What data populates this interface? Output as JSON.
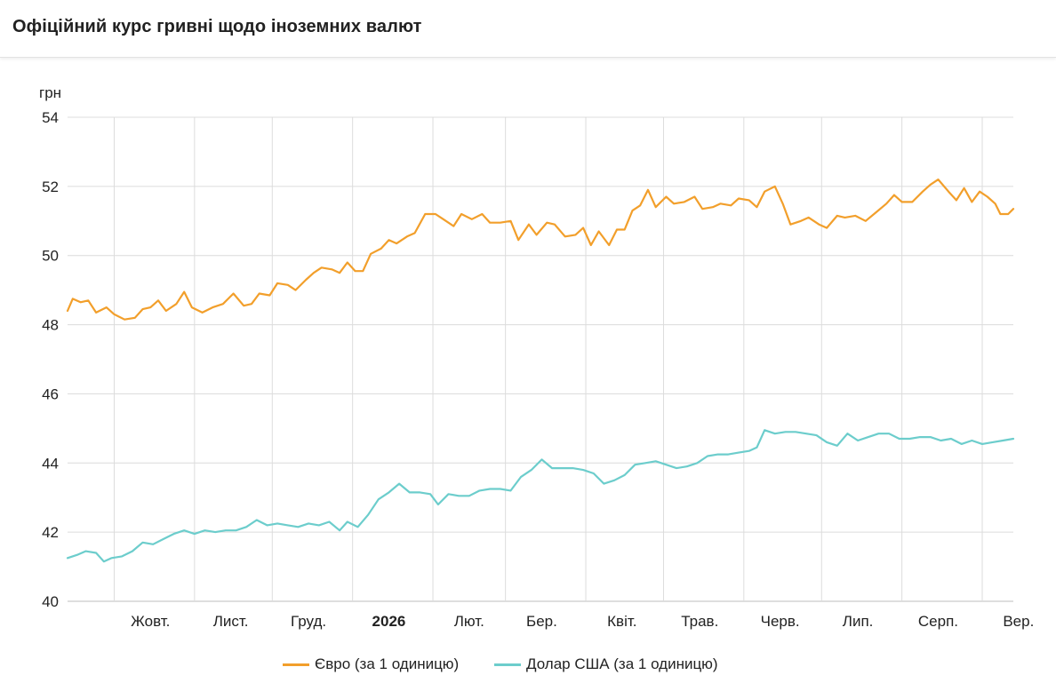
{
  "header": {
    "title": "Офіційний курс гривні щодо іноземних валют"
  },
  "legend": {
    "items": [
      {
        "label": "Євро (за 1 одиницю)",
        "color": "#f29f2b"
      },
      {
        "label": "Долар США (за 1 одиницю)",
        "color": "#6ccdcc"
      }
    ]
  },
  "chart_data": {
    "type": "line",
    "ylabel": "грн",
    "ylim": [
      40,
      54
    ],
    "yticks": [
      40,
      42,
      44,
      46,
      48,
      50,
      52,
      54
    ],
    "xlim": [
      "2025-09-13",
      "2026-09-13"
    ],
    "grid": true,
    "legend_position": "bottom",
    "x_ticks": [
      {
        "label": "Жовт.",
        "date": "2025-10-15",
        "bold": false
      },
      {
        "label": "Лист.",
        "date": "2025-11-15",
        "bold": false
      },
      {
        "label": "Груд.",
        "date": "2025-12-15",
        "bold": false
      },
      {
        "label": "2026",
        "date": "2026-01-15",
        "bold": true
      },
      {
        "label": "Лют.",
        "date": "2026-02-15",
        "bold": false
      },
      {
        "label": "Бер.",
        "date": "2026-03-15",
        "bold": false
      },
      {
        "label": "Квіт.",
        "date": "2026-04-15",
        "bold": false
      },
      {
        "label": "Трав.",
        "date": "2026-05-15",
        "bold": false
      },
      {
        "label": "Черв.",
        "date": "2026-06-15",
        "bold": false
      },
      {
        "label": "Лип.",
        "date": "2026-07-15",
        "bold": false
      },
      {
        "label": "Серп.",
        "date": "2026-08-15",
        "bold": false
      },
      {
        "label": "Вер.",
        "date": "2026-09-15",
        "bold": false
      }
    ],
    "v_gridlines": [
      "2025-10-01",
      "2025-11-01",
      "2025-12-01",
      "2026-01-01",
      "2026-02-01",
      "2026-03-01",
      "2026-04-01",
      "2026-05-01",
      "2026-06-01",
      "2026-07-01",
      "2026-08-01",
      "2026-09-01"
    ],
    "series": [
      {
        "name": "Євро (за 1 одиницю)",
        "color": "#f29f2b",
        "points": [
          [
            "2025-09-13",
            48.4
          ],
          [
            "2025-09-15",
            48.75
          ],
          [
            "2025-09-18",
            48.65
          ],
          [
            "2025-09-21",
            48.7
          ],
          [
            "2025-09-24",
            48.35
          ],
          [
            "2025-09-28",
            48.5
          ],
          [
            "2025-10-01",
            48.3
          ],
          [
            "2025-10-05",
            48.15
          ],
          [
            "2025-10-09",
            48.2
          ],
          [
            "2025-10-12",
            48.45
          ],
          [
            "2025-10-15",
            48.5
          ],
          [
            "2025-10-18",
            48.7
          ],
          [
            "2025-10-21",
            48.4
          ],
          [
            "2025-10-25",
            48.6
          ],
          [
            "2025-10-28",
            48.95
          ],
          [
            "2025-10-31",
            48.5
          ],
          [
            "2025-11-04",
            48.35
          ],
          [
            "2025-11-08",
            48.5
          ],
          [
            "2025-11-12",
            48.6
          ],
          [
            "2025-11-16",
            48.9
          ],
          [
            "2025-11-20",
            48.55
          ],
          [
            "2025-11-23",
            48.6
          ],
          [
            "2025-11-26",
            48.9
          ],
          [
            "2025-11-30",
            48.85
          ],
          [
            "2025-12-03",
            49.2
          ],
          [
            "2025-12-07",
            49.15
          ],
          [
            "2025-12-10",
            49.0
          ],
          [
            "2025-12-14",
            49.3
          ],
          [
            "2025-12-17",
            49.5
          ],
          [
            "2025-12-20",
            49.65
          ],
          [
            "2025-12-24",
            49.6
          ],
          [
            "2025-12-27",
            49.5
          ],
          [
            "2025-12-30",
            49.8
          ],
          [
            "2026-01-02",
            49.55
          ],
          [
            "2026-01-05",
            49.55
          ],
          [
            "2026-01-08",
            50.05
          ],
          [
            "2026-01-12",
            50.2
          ],
          [
            "2026-01-15",
            50.45
          ],
          [
            "2026-01-18",
            50.35
          ],
          [
            "2026-01-22",
            50.55
          ],
          [
            "2026-01-25",
            50.65
          ],
          [
            "2026-01-29",
            51.2
          ],
          [
            "2026-02-02",
            51.2
          ],
          [
            "2026-02-05",
            51.05
          ],
          [
            "2026-02-09",
            50.85
          ],
          [
            "2026-02-12",
            51.2
          ],
          [
            "2026-02-16",
            51.05
          ],
          [
            "2026-02-20",
            51.2
          ],
          [
            "2026-02-23",
            50.95
          ],
          [
            "2026-02-27",
            50.95
          ],
          [
            "2026-03-03",
            51.0
          ],
          [
            "2026-03-06",
            50.45
          ],
          [
            "2026-03-10",
            50.9
          ],
          [
            "2026-03-13",
            50.6
          ],
          [
            "2026-03-17",
            50.95
          ],
          [
            "2026-03-20",
            50.9
          ],
          [
            "2026-03-24",
            50.55
          ],
          [
            "2026-03-28",
            50.6
          ],
          [
            "2026-03-31",
            50.8
          ],
          [
            "2026-04-03",
            50.3
          ],
          [
            "2026-04-06",
            50.7
          ],
          [
            "2026-04-10",
            50.3
          ],
          [
            "2026-04-13",
            50.75
          ],
          [
            "2026-04-16",
            50.75
          ],
          [
            "2026-04-19",
            51.3
          ],
          [
            "2026-04-22",
            51.45
          ],
          [
            "2026-04-25",
            51.9
          ],
          [
            "2026-04-28",
            51.4
          ],
          [
            "2026-05-02",
            51.7
          ],
          [
            "2026-05-05",
            51.5
          ],
          [
            "2026-05-09",
            51.55
          ],
          [
            "2026-05-13",
            51.7
          ],
          [
            "2026-05-16",
            51.35
          ],
          [
            "2026-05-20",
            51.4
          ],
          [
            "2026-05-23",
            51.5
          ],
          [
            "2026-05-27",
            51.45
          ],
          [
            "2026-05-30",
            51.65
          ],
          [
            "2026-06-03",
            51.6
          ],
          [
            "2026-06-06",
            51.4
          ],
          [
            "2026-06-09",
            51.85
          ],
          [
            "2026-06-13",
            52.0
          ],
          [
            "2026-06-16",
            51.5
          ],
          [
            "2026-06-19",
            50.9
          ],
          [
            "2026-06-23",
            51.0
          ],
          [
            "2026-06-26",
            51.1
          ],
          [
            "2026-06-30",
            50.9
          ],
          [
            "2026-07-03",
            50.8
          ],
          [
            "2026-07-07",
            51.15
          ],
          [
            "2026-07-10",
            51.1
          ],
          [
            "2026-07-14",
            51.15
          ],
          [
            "2026-07-18",
            51.0
          ],
          [
            "2026-07-22",
            51.25
          ],
          [
            "2026-07-26",
            51.5
          ],
          [
            "2026-07-29",
            51.75
          ],
          [
            "2026-08-01",
            51.55
          ],
          [
            "2026-08-05",
            51.55
          ],
          [
            "2026-08-09",
            51.85
          ],
          [
            "2026-08-12",
            52.05
          ],
          [
            "2026-08-15",
            52.2
          ],
          [
            "2026-08-19",
            51.85
          ],
          [
            "2026-08-22",
            51.6
          ],
          [
            "2026-08-25",
            51.95
          ],
          [
            "2026-08-28",
            51.55
          ],
          [
            "2026-08-31",
            51.85
          ],
          [
            "2026-09-03",
            51.7
          ],
          [
            "2026-09-06",
            51.5
          ],
          [
            "2026-09-08",
            51.2
          ],
          [
            "2026-09-11",
            51.2
          ],
          [
            "2026-09-13",
            51.35
          ]
        ]
      },
      {
        "name": "Долар США (за 1 одиницю)",
        "color": "#6ccdcc",
        "points": [
          [
            "2025-09-13",
            41.25
          ],
          [
            "2025-09-17",
            41.35
          ],
          [
            "2025-09-20",
            41.45
          ],
          [
            "2025-09-24",
            41.4
          ],
          [
            "2025-09-27",
            41.15
          ],
          [
            "2025-09-30",
            41.25
          ],
          [
            "2025-10-04",
            41.3
          ],
          [
            "2025-10-08",
            41.45
          ],
          [
            "2025-10-12",
            41.7
          ],
          [
            "2025-10-16",
            41.65
          ],
          [
            "2025-10-20",
            41.8
          ],
          [
            "2025-10-24",
            41.95
          ],
          [
            "2025-10-28",
            42.05
          ],
          [
            "2025-11-01",
            41.95
          ],
          [
            "2025-11-05",
            42.05
          ],
          [
            "2025-11-09",
            42.0
          ],
          [
            "2025-11-13",
            42.05
          ],
          [
            "2025-11-17",
            42.05
          ],
          [
            "2025-11-21",
            42.15
          ],
          [
            "2025-11-25",
            42.35
          ],
          [
            "2025-11-29",
            42.2
          ],
          [
            "2025-12-03",
            42.25
          ],
          [
            "2025-12-07",
            42.2
          ],
          [
            "2025-12-11",
            42.15
          ],
          [
            "2025-12-15",
            42.25
          ],
          [
            "2025-12-19",
            42.2
          ],
          [
            "2025-12-23",
            42.3
          ],
          [
            "2025-12-27",
            42.05
          ],
          [
            "2025-12-30",
            42.3
          ],
          [
            "2026-01-03",
            42.15
          ],
          [
            "2026-01-07",
            42.5
          ],
          [
            "2026-01-11",
            42.95
          ],
          [
            "2026-01-15",
            43.15
          ],
          [
            "2026-01-19",
            43.4
          ],
          [
            "2026-01-23",
            43.15
          ],
          [
            "2026-01-27",
            43.15
          ],
          [
            "2026-01-31",
            43.1
          ],
          [
            "2026-02-03",
            42.8
          ],
          [
            "2026-02-07",
            43.1
          ],
          [
            "2026-02-11",
            43.05
          ],
          [
            "2026-02-15",
            43.05
          ],
          [
            "2026-02-19",
            43.2
          ],
          [
            "2026-02-23",
            43.25
          ],
          [
            "2026-02-27",
            43.25
          ],
          [
            "2026-03-03",
            43.2
          ],
          [
            "2026-03-07",
            43.6
          ],
          [
            "2026-03-11",
            43.8
          ],
          [
            "2026-03-15",
            44.1
          ],
          [
            "2026-03-19",
            43.85
          ],
          [
            "2026-03-23",
            43.85
          ],
          [
            "2026-03-27",
            43.85
          ],
          [
            "2026-03-31",
            43.8
          ],
          [
            "2026-04-04",
            43.7
          ],
          [
            "2026-04-08",
            43.4
          ],
          [
            "2026-04-12",
            43.5
          ],
          [
            "2026-04-16",
            43.65
          ],
          [
            "2026-04-20",
            43.95
          ],
          [
            "2026-04-24",
            44.0
          ],
          [
            "2026-04-28",
            44.05
          ],
          [
            "2026-05-02",
            43.95
          ],
          [
            "2026-05-06",
            43.85
          ],
          [
            "2026-05-10",
            43.9
          ],
          [
            "2026-05-14",
            44.0
          ],
          [
            "2026-05-18",
            44.2
          ],
          [
            "2026-05-22",
            44.25
          ],
          [
            "2026-05-26",
            44.25
          ],
          [
            "2026-05-30",
            44.3
          ],
          [
            "2026-06-03",
            44.35
          ],
          [
            "2026-06-06",
            44.45
          ],
          [
            "2026-06-09",
            44.95
          ],
          [
            "2026-06-13",
            44.85
          ],
          [
            "2026-06-17",
            44.9
          ],
          [
            "2026-06-21",
            44.9
          ],
          [
            "2026-06-25",
            44.85
          ],
          [
            "2026-06-29",
            44.8
          ],
          [
            "2026-07-03",
            44.6
          ],
          [
            "2026-07-07",
            44.5
          ],
          [
            "2026-07-11",
            44.85
          ],
          [
            "2026-07-15",
            44.65
          ],
          [
            "2026-07-19",
            44.75
          ],
          [
            "2026-07-23",
            44.85
          ],
          [
            "2026-07-27",
            44.85
          ],
          [
            "2026-07-31",
            44.7
          ],
          [
            "2026-08-04",
            44.7
          ],
          [
            "2026-08-08",
            44.75
          ],
          [
            "2026-08-12",
            44.75
          ],
          [
            "2026-08-16",
            44.65
          ],
          [
            "2026-08-20",
            44.7
          ],
          [
            "2026-08-24",
            44.55
          ],
          [
            "2026-08-28",
            44.65
          ],
          [
            "2026-09-01",
            44.55
          ],
          [
            "2026-09-05",
            44.6
          ],
          [
            "2026-09-09",
            44.65
          ],
          [
            "2026-09-13",
            44.7
          ]
        ]
      }
    ]
  }
}
